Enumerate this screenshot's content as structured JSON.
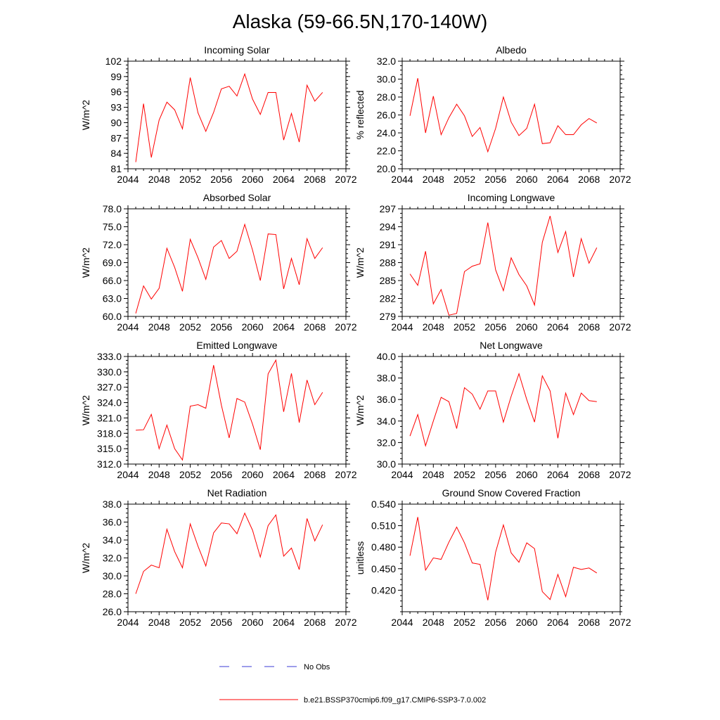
{
  "title": "Alaska (59-66.5N,170-140W)",
  "legend": {
    "obs_label": "No Obs",
    "model_label": "b.e21.BSSP370cmip6.f09_g17.CMIP6-SSP3-7.0.002",
    "obs_color": "#3b3bd6",
    "model_color": "#ff0000"
  },
  "chart_data": [
    {
      "type": "line",
      "title": "Incoming Solar",
      "xlabel": "",
      "ylabel": "W/m^2",
      "xlim": [
        2044,
        2072
      ],
      "ylim": [
        81,
        102
      ],
      "xticks": [
        "2044",
        "2048",
        "2052",
        "2056",
        "2060",
        "2064",
        "2068",
        "2072"
      ],
      "yticks": [
        "81",
        "84",
        "87",
        "90",
        "93",
        "96",
        "99",
        "102"
      ],
      "series": [
        {
          "name": "b.e21.BSSP370cmip6.f09_g17.CMIP6-SSP3-7.0.002",
          "color": "#ff0000",
          "x": [
            2045,
            2046,
            2047,
            2048,
            2049,
            2050,
            2051,
            2052,
            2053,
            2054,
            2055,
            2056,
            2057,
            2058,
            2059,
            2060,
            2061,
            2062,
            2063,
            2064,
            2065,
            2066,
            2067,
            2068,
            2069
          ],
          "y": [
            82.3,
            93.7,
            83.2,
            90.5,
            94.0,
            92.5,
            88.8,
            98.8,
            91.9,
            88.3,
            92.0,
            96.6,
            97.1,
            95.2,
            99.5,
            94.6,
            91.6,
            95.9,
            95.9,
            86.6,
            91.8,
            86.2,
            97.3,
            94.2,
            95.9
          ]
        }
      ]
    },
    {
      "type": "line",
      "title": "Albedo",
      "xlabel": "",
      "ylabel": "% reflected",
      "xlim": [
        2044,
        2072
      ],
      "ylim": [
        20,
        32
      ],
      "xticks": [
        "2044",
        "2048",
        "2052",
        "2056",
        "2060",
        "2064",
        "2068",
        "2072"
      ],
      "yticks": [
        "20.0",
        "22.0",
        "24.0",
        "26.0",
        "28.0",
        "30.0",
        "32.0"
      ],
      "series": [
        {
          "name": "b.e21.BSSP370cmip6.f09_g17.CMIP6-SSP3-7.0.002",
          "color": "#ff0000",
          "x": [
            2045,
            2046,
            2047,
            2048,
            2049,
            2050,
            2051,
            2052,
            2053,
            2054,
            2055,
            2056,
            2057,
            2058,
            2059,
            2060,
            2061,
            2062,
            2063,
            2064,
            2065,
            2066,
            2067,
            2068,
            2069
          ],
          "y": [
            25.9,
            30.1,
            24.0,
            28.1,
            23.8,
            25.7,
            27.2,
            25.9,
            23.6,
            24.6,
            21.9,
            24.5,
            28.0,
            25.2,
            23.7,
            24.5,
            27.2,
            22.8,
            22.9,
            24.8,
            23.8,
            23.8,
            24.9,
            25.6,
            25.1
          ]
        }
      ]
    },
    {
      "type": "line",
      "title": "Absorbed Solar",
      "xlabel": "",
      "ylabel": "W/m^2",
      "xlim": [
        2044,
        2072
      ],
      "ylim": [
        60,
        78
      ],
      "xticks": [
        "2044",
        "2048",
        "2052",
        "2056",
        "2060",
        "2064",
        "2068",
        "2072"
      ],
      "yticks": [
        "60.0",
        "63.0",
        "66.0",
        "69.0",
        "72.0",
        "75.0",
        "78.0"
      ],
      "series": [
        {
          "name": "b.e21.BSSP370cmip6.f09_g17.CMIP6-SSP3-7.0.002",
          "color": "#ff0000",
          "x": [
            2045,
            2046,
            2047,
            2048,
            2049,
            2050,
            2051,
            2052,
            2053,
            2054,
            2055,
            2056,
            2057,
            2058,
            2059,
            2060,
            2061,
            2062,
            2063,
            2064,
            2065,
            2066,
            2067,
            2068,
            2069
          ],
          "y": [
            60.5,
            65.1,
            62.9,
            64.7,
            71.4,
            68.2,
            64.2,
            72.9,
            69.8,
            66.2,
            71.6,
            72.7,
            69.7,
            70.9,
            75.4,
            71.1,
            66.0,
            73.8,
            73.7,
            64.6,
            69.7,
            65.3,
            73.0,
            69.7,
            71.5
          ]
        }
      ]
    },
    {
      "type": "line",
      "title": "Incoming Longwave",
      "xlabel": "",
      "ylabel": "W/m^2",
      "xlim": [
        2044,
        2072
      ],
      "ylim": [
        279,
        297
      ],
      "xticks": [
        "2044",
        "2048",
        "2052",
        "2056",
        "2060",
        "2064",
        "2068",
        "2072"
      ],
      "yticks": [
        "279",
        "282",
        "285",
        "288",
        "291",
        "294",
        "297"
      ],
      "series": [
        {
          "name": "b.e21.BSSP370cmip6.f09_g17.CMIP6-SSP3-7.0.002",
          "color": "#ff0000",
          "x": [
            2045,
            2046,
            2047,
            2048,
            2049,
            2050,
            2051,
            2052,
            2053,
            2054,
            2055,
            2056,
            2057,
            2058,
            2059,
            2060,
            2061,
            2062,
            2063,
            2064,
            2065,
            2066,
            2067,
            2068,
            2069
          ],
          "y": [
            286.1,
            284.2,
            289.9,
            281.1,
            283.5,
            279.2,
            279.5,
            286.5,
            287.4,
            287.8,
            294.7,
            286.8,
            283.3,
            288.8,
            286.0,
            284.1,
            280.9,
            291.4,
            295.8,
            289.7,
            293.2,
            285.6,
            292.0,
            287.9,
            290.5
          ]
        }
      ]
    },
    {
      "type": "line",
      "title": "Emitted Longwave",
      "xlabel": "",
      "ylabel": "W/m^2",
      "xlim": [
        2044,
        2072
      ],
      "ylim": [
        312,
        333
      ],
      "xticks": [
        "2044",
        "2048",
        "2052",
        "2056",
        "2060",
        "2064",
        "2068",
        "2072"
      ],
      "yticks": [
        "312.0",
        "315.0",
        "318.0",
        "321.0",
        "324.0",
        "327.0",
        "330.0",
        "333.0"
      ],
      "series": [
        {
          "name": "b.e21.BSSP370cmip6.f09_g17.CMIP6-SSP3-7.0.002",
          "color": "#ff0000",
          "x": [
            2045,
            2046,
            2047,
            2048,
            2049,
            2050,
            2051,
            2052,
            2053,
            2054,
            2055,
            2056,
            2057,
            2058,
            2059,
            2060,
            2061,
            2062,
            2063,
            2064,
            2065,
            2066,
            2067,
            2068,
            2069
          ],
          "y": [
            318.6,
            318.7,
            321.7,
            315.0,
            319.6,
            315.0,
            312.8,
            323.3,
            323.6,
            322.9,
            331.3,
            323.5,
            317.1,
            324.8,
            324.1,
            319.8,
            314.8,
            329.6,
            332.3,
            322.2,
            329.7,
            320.1,
            328.4,
            323.6,
            326.0
          ]
        }
      ]
    },
    {
      "type": "line",
      "title": "Net Longwave",
      "xlabel": "",
      "ylabel": "W/m^2",
      "xlim": [
        2044,
        2072
      ],
      "ylim": [
        30,
        40
      ],
      "xticks": [
        "2044",
        "2048",
        "2052",
        "2056",
        "2060",
        "2064",
        "2068",
        "2072"
      ],
      "yticks": [
        "30.0",
        "32.0",
        "34.0",
        "36.0",
        "38.0",
        "40.0"
      ],
      "series": [
        {
          "name": "b.e21.BSSP370cmip6.f09_g17.CMIP6-SSP3-7.0.002",
          "color": "#ff0000",
          "x": [
            2045,
            2046,
            2047,
            2048,
            2049,
            2050,
            2051,
            2052,
            2053,
            2054,
            2055,
            2056,
            2057,
            2058,
            2059,
            2060,
            2061,
            2062,
            2063,
            2064,
            2065,
            2066,
            2067,
            2068,
            2069
          ],
          "y": [
            32.6,
            34.6,
            31.7,
            34.0,
            36.2,
            35.8,
            33.3,
            37.1,
            36.5,
            35.1,
            36.8,
            36.8,
            33.9,
            36.3,
            38.4,
            36.0,
            33.9,
            38.2,
            36.8,
            32.4,
            36.6,
            34.6,
            36.6,
            35.9,
            35.8
          ]
        }
      ]
    },
    {
      "type": "line",
      "title": "Net Radiation",
      "xlabel": "",
      "ylabel": "W/m^2",
      "xlim": [
        2044,
        2072
      ],
      "ylim": [
        26,
        38
      ],
      "xticks": [
        "2044",
        "2048",
        "2052",
        "2056",
        "2060",
        "2064",
        "2068",
        "2072"
      ],
      "yticks": [
        "26.0",
        "28.0",
        "30.0",
        "32.0",
        "34.0",
        "36.0",
        "38.0"
      ],
      "series": [
        {
          "name": "b.e21.BSSP370cmip6.f09_g17.CMIP6-SSP3-7.0.002",
          "color": "#ff0000",
          "x": [
            2045,
            2046,
            2047,
            2048,
            2049,
            2050,
            2051,
            2052,
            2053,
            2054,
            2055,
            2056,
            2057,
            2058,
            2059,
            2060,
            2061,
            2062,
            2063,
            2064,
            2065,
            2066,
            2067,
            2068,
            2069
          ],
          "y": [
            28.0,
            30.5,
            31.2,
            30.9,
            35.2,
            32.7,
            30.9,
            35.8,
            33.3,
            31.1,
            34.8,
            35.9,
            35.8,
            34.7,
            37.0,
            35.1,
            32.1,
            35.6,
            36.8,
            32.2,
            33.1,
            30.7,
            36.4,
            33.9,
            35.7
          ]
        }
      ]
    },
    {
      "type": "line",
      "title": "Ground Snow Covered Fraction",
      "xlabel": "",
      "ylabel": "unitless",
      "xlim": [
        2044,
        2072
      ],
      "ylim": [
        0.39,
        0.54
      ],
      "xticks": [
        "2044",
        "2048",
        "2052",
        "2056",
        "2060",
        "2064",
        "2068",
        "2072"
      ],
      "yticks": [
        "0.420",
        "0.450",
        "0.480",
        "0.510",
        "0.540"
      ],
      "series": [
        {
          "name": "b.e21.BSSP370cmip6.f09_g17.CMIP6-SSP3-7.0.002",
          "color": "#ff0000",
          "x": [
            2045,
            2046,
            2047,
            2048,
            2049,
            2050,
            2051,
            2052,
            2053,
            2054,
            2055,
            2056,
            2057,
            2058,
            2059,
            2060,
            2061,
            2062,
            2063,
            2064,
            2065,
            2066,
            2067,
            2068,
            2069
          ],
          "y": [
            0.468,
            0.522,
            0.448,
            0.465,
            0.463,
            0.487,
            0.508,
            0.486,
            0.458,
            0.456,
            0.406,
            0.473,
            0.511,
            0.472,
            0.459,
            0.486,
            0.478,
            0.418,
            0.407,
            0.442,
            0.411,
            0.452,
            0.449,
            0.451,
            0.444
          ]
        }
      ]
    }
  ]
}
